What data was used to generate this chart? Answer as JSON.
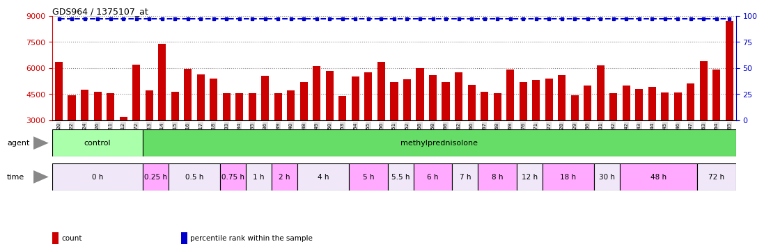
{
  "title": "GDS964 / 1375107_at",
  "bar_color": "#cc0000",
  "line_color": "#0000cc",
  "ylim_left": [
    3000,
    9000
  ],
  "ylim_right": [
    0,
    100
  ],
  "yticks_left": [
    3000,
    4500,
    6000,
    7500,
    9000
  ],
  "yticks_right": [
    0,
    25,
    50,
    75,
    100
  ],
  "samples": [
    "GSM29120",
    "GSM29122",
    "GSM29124",
    "GSM29126",
    "GSM29111",
    "GSM29112",
    "GSM29172",
    "GSM29113",
    "GSM29114",
    "GSM29115",
    "GSM29116",
    "GSM29117",
    "GSM29118",
    "GSM29133",
    "GSM29134",
    "GSM29135",
    "GSM29136",
    "GSM29139",
    "GSM29140",
    "GSM29148",
    "GSM29149",
    "GSM29150",
    "GSM29153",
    "GSM29154",
    "GSM29155",
    "GSM29156",
    "GSM29151",
    "GSM29152",
    "GSM29258",
    "GSM29158",
    "GSM29160",
    "GSM29162",
    "GSM29166",
    "GSM29167",
    "GSM29168",
    "GSM29169",
    "GSM29170",
    "GSM29171",
    "GSM29127",
    "GSM29128",
    "GSM29129",
    "GSM29130",
    "GSM29131",
    "GSM29132",
    "GSM29142",
    "GSM29143",
    "GSM29144",
    "GSM29145",
    "GSM29146",
    "GSM29147",
    "GSM29163",
    "GSM29164",
    "GSM29165"
  ],
  "values": [
    6350,
    4450,
    4750,
    4650,
    4550,
    3200,
    6200,
    4700,
    7400,
    4650,
    5950,
    5650,
    5400,
    4550,
    4550,
    4550,
    5550,
    4550,
    4700,
    5200,
    6100,
    5850,
    4400,
    5500,
    5750,
    6350,
    5200,
    5350,
    6000,
    5600,
    5200,
    5750,
    5050,
    4650,
    4550,
    5900,
    5200,
    5300,
    5400,
    5600,
    4450,
    5000,
    6150,
    4550,
    5000,
    4800,
    4900,
    4600,
    4600,
    5100,
    6400,
    5900,
    8700
  ],
  "percentile_value": 97,
  "agent_groups": [
    {
      "label": "control",
      "start": 0,
      "end": 7,
      "color": "#aaffaa"
    },
    {
      "label": "methylprednisolone",
      "start": 7,
      "end": 53,
      "color": "#66dd66"
    }
  ],
  "time_groups": [
    {
      "label": "0 h",
      "start": 0,
      "end": 7,
      "color": "#f0e8f8"
    },
    {
      "label": "0.25 h",
      "start": 7,
      "end": 9,
      "color": "#ffaaff"
    },
    {
      "label": "0.5 h",
      "start": 9,
      "end": 13,
      "color": "#f0e8f8"
    },
    {
      "label": "0.75 h",
      "start": 13,
      "end": 15,
      "color": "#ffaaff"
    },
    {
      "label": "1 h",
      "start": 15,
      "end": 17,
      "color": "#f0e8f8"
    },
    {
      "label": "2 h",
      "start": 17,
      "end": 19,
      "color": "#ffaaff"
    },
    {
      "label": "4 h",
      "start": 19,
      "end": 23,
      "color": "#f0e8f8"
    },
    {
      "label": "5 h",
      "start": 23,
      "end": 26,
      "color": "#ffaaff"
    },
    {
      "label": "5.5 h",
      "start": 26,
      "end": 28,
      "color": "#f0e8f8"
    },
    {
      "label": "6 h",
      "start": 28,
      "end": 31,
      "color": "#ffaaff"
    },
    {
      "label": "7 h",
      "start": 31,
      "end": 33,
      "color": "#f0e8f8"
    },
    {
      "label": "8 h",
      "start": 33,
      "end": 36,
      "color": "#ffaaff"
    },
    {
      "label": "12 h",
      "start": 36,
      "end": 38,
      "color": "#f0e8f8"
    },
    {
      "label": "18 h",
      "start": 38,
      "end": 42,
      "color": "#ffaaff"
    },
    {
      "label": "30 h",
      "start": 42,
      "end": 44,
      "color": "#f0e8f8"
    },
    {
      "label": "48 h",
      "start": 44,
      "end": 50,
      "color": "#ffaaff"
    },
    {
      "label": "72 h",
      "start": 50,
      "end": 53,
      "color": "#f0e8f8"
    }
  ],
  "legend_items": [
    {
      "label": "count",
      "color": "#cc0000"
    },
    {
      "label": "percentile rank within the sample",
      "color": "#0000cc"
    }
  ],
  "bg_color": "#ffffff",
  "grid_color": "#888888",
  "tick_label_color_left": "#cc0000",
  "tick_label_color_right": "#0000cc",
  "xtick_bg": "#dddddd"
}
